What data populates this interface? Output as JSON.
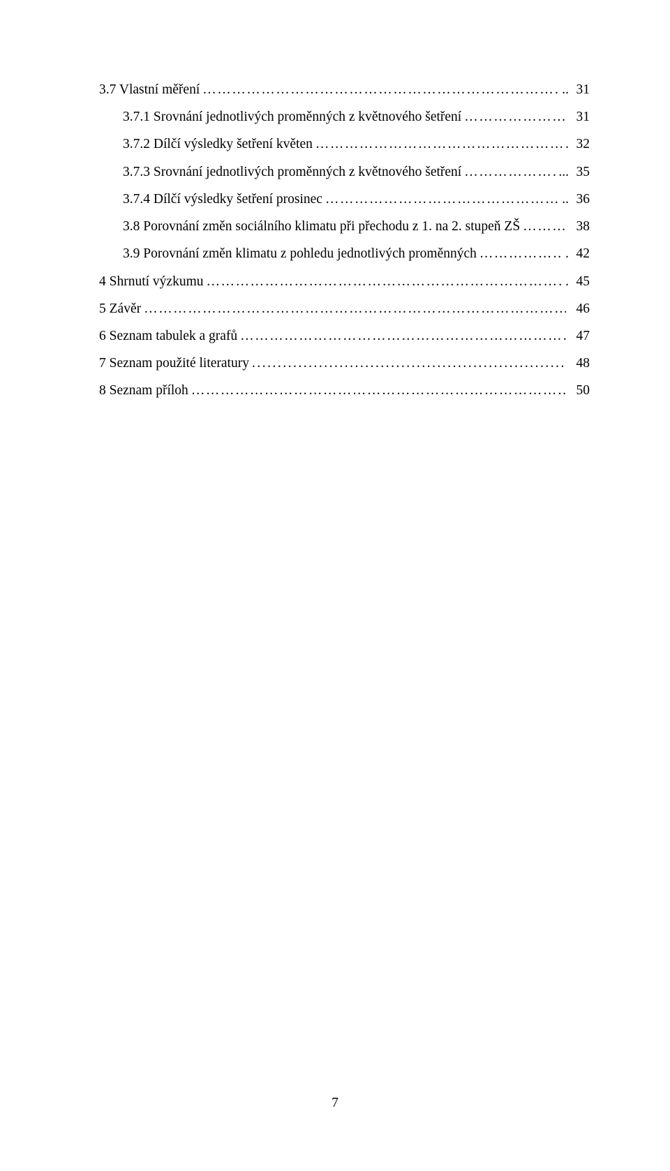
{
  "toc": [
    {
      "indent": 0,
      "label": "3.7 Vlastní měření",
      "leader": "ellipsis",
      "trail": "..",
      "page": "31"
    },
    {
      "indent": 1,
      "label": "3.7.1 Srovnání jednotlivých proměnných z květnového šetření",
      "leader": "ellipsis",
      "trail": "",
      "page": "31"
    },
    {
      "indent": 1,
      "label": "3.7.2 Dílčí výsledky šetření květen",
      "leader": "ellipsis",
      "trail": ".",
      "page": "32"
    },
    {
      "indent": 1,
      "label": "3.7.3 Srovnání jednotlivých proměnných z květnového šetření",
      "leader": "ellipsis",
      "trail": "...",
      "page": "35"
    },
    {
      "indent": 1,
      "label": "3.7.4 Dílčí výsledky šetření prosinec",
      "leader": "ellipsis",
      "trail": "..",
      "page": "36"
    },
    {
      "indent": 1,
      "label": "3.8 Porovnání změn sociálního klimatu při přechodu z 1. na 2. stupeň ZŠ",
      "leader": "ellipsis",
      "trail": "",
      "page": "38"
    },
    {
      "indent": 1,
      "label": "3.9 Porovnání změn klimatu z pohledu jednotlivých proměnných",
      "leader": "ellipsis",
      "trail": ".",
      "page": "42"
    },
    {
      "indent": 0,
      "label": "4 Shrnutí výzkumu",
      "leader": "ellipsis",
      "trail": ".",
      "page": "45"
    },
    {
      "indent": 0,
      "label": "5 Závěr",
      "leader": "ellipsis",
      "trail": "",
      "page": "46"
    },
    {
      "indent": 0,
      "label": "6 Seznam tabulek a grafů",
      "leader": "ellipsis",
      "trail": "",
      "page": "47"
    },
    {
      "indent": 0,
      "label": "7 Seznam použité literatury",
      "leader": "dot",
      "trail": "",
      "page": "48"
    },
    {
      "indent": 0,
      "label": "8 Seznam příloh",
      "leader": "ellipsis",
      "trail": "",
      "page": "50"
    }
  ],
  "page_number": "7"
}
